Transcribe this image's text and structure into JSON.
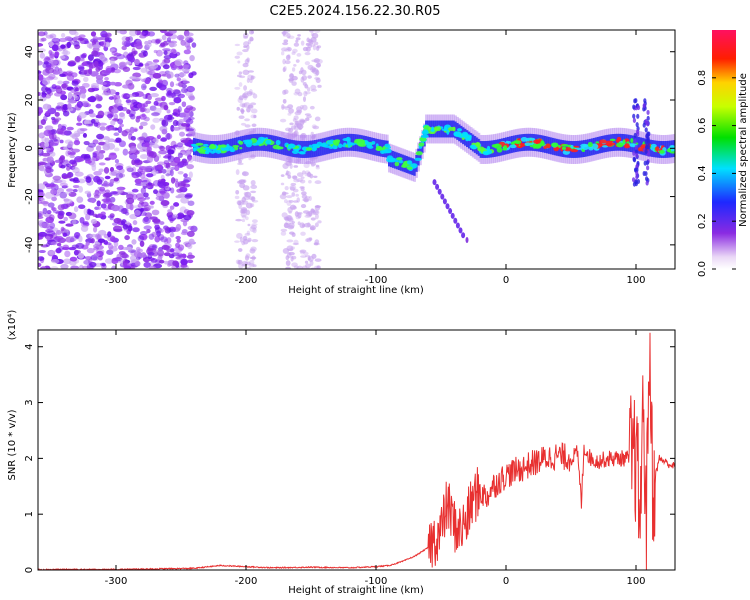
{
  "figure": {
    "title": "C2E5.2024.156.22.30.R05"
  },
  "chart_data": [
    {
      "type": "heatmap",
      "xlabel": "Height of straight line (km)",
      "ylabel": "Frequency (Hz)",
      "xlim": [
        -360,
        130
      ],
      "ylim": [
        -50,
        49
      ],
      "xticks": [
        -300,
        -200,
        -100,
        0,
        100
      ],
      "yticks": [
        -40,
        -20,
        0,
        20,
        40
      ],
      "colorbar": {
        "label": "Normalized spectral amplitude",
        "range": [
          0.0,
          1.0
        ],
        "ticks": [
          0.0,
          0.2,
          0.4,
          0.6,
          0.8
        ],
        "colormap": "rainbow (white-violet-blue-cyan-green-yellow-red-magenta)"
      },
      "features": [
        {
          "feature": "broadband noise",
          "x_range": [
            -360,
            -240
          ],
          "y_range": [
            -50,
            49
          ],
          "amplitude": 0.15
        },
        {
          "feature": "noise stripes",
          "x_centers": [
            -200,
            -165,
            -150
          ],
          "y_range": [
            -50,
            49
          ],
          "amplitude": 0.05
        },
        {
          "feature": "main frequency band",
          "x_range": [
            -240,
            130
          ],
          "y_center": 0,
          "amplitude": 0.5
        },
        {
          "feature": "dip",
          "x_range": [
            -90,
            -70
          ],
          "y_center": -8
        },
        {
          "feature": "rise",
          "x_range": [
            -65,
            -40
          ],
          "y_center": 8
        },
        {
          "feature": "diagonal streak",
          "x_range": [
            -55,
            -30
          ],
          "y_range": [
            -14,
            -38
          ]
        },
        {
          "feature": "vertical spread",
          "x_centers": [
            100,
            108
          ],
          "y_range": [
            -15,
            20
          ]
        }
      ]
    },
    {
      "type": "line",
      "xlabel": "Height of straight line (km)",
      "ylabel": "SNR (10 * v/v)",
      "y_multiplier": "(x10⁴)",
      "xlim": [
        -360,
        130
      ],
      "ylim": [
        0,
        4.3
      ],
      "xticks": [
        -300,
        -200,
        -100,
        0,
        100
      ],
      "yticks": [
        0,
        1,
        2,
        3,
        4
      ],
      "color": "#e83030",
      "series": [
        {
          "x": [
            -360,
            -300,
            -240,
            -220,
            -200,
            -180,
            -150,
            -120,
            -100,
            -90,
            -80,
            -70,
            -60,
            -50,
            -45,
            -40,
            -35,
            -30,
            -25,
            -20,
            -15,
            -10,
            -5,
            0,
            10,
            20,
            30,
            40,
            50,
            55,
            58,
            60,
            65,
            70,
            80,
            90,
            100,
            103,
            106,
            108,
            110,
            113,
            118,
            125,
            130
          ],
          "y": [
            0.01,
            0.01,
            0.03,
            0.08,
            0.06,
            0.04,
            0.05,
            0.04,
            0.06,
            0.08,
            0.15,
            0.25,
            0.4,
            0.7,
            1.2,
            0.8,
            0.7,
            0.9,
            1.3,
            1.4,
            1.3,
            1.5,
            1.6,
            1.7,
            1.8,
            1.9,
            2.0,
            2.05,
            2.0,
            2.1,
            1.2,
            2.2,
            2.0,
            1.95,
            2.0,
            2.0,
            2.0,
            1.0,
            3.0,
            0.6,
            4.2,
            1.5,
            2.0,
            1.9,
            1.85
          ]
        }
      ]
    }
  ]
}
